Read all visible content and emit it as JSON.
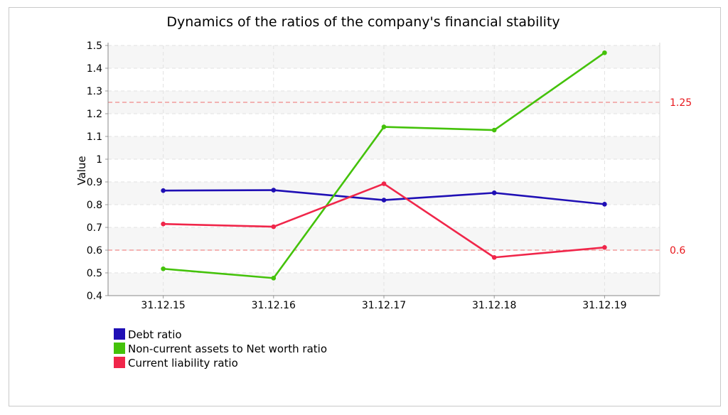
{
  "chart_data": {
    "type": "line",
    "title": "Dynamics of the ratios of the company's financial stability",
    "xlabel": "",
    "ylabel": "Value",
    "categories": [
      "31.12.15",
      "31.12.16",
      "31.12.17",
      "31.12.18",
      "31.12.19"
    ],
    "ylim": [
      0.4,
      1.5
    ],
    "yticks": [
      0.4,
      0.5,
      0.6,
      0.7,
      0.8,
      0.9,
      1,
      1.1,
      1.2,
      1.3,
      1.4,
      1.5
    ],
    "grid": true,
    "legend_position": "bottom-left",
    "series": [
      {
        "name": "Debt ratio",
        "color": "#1f0fb5",
        "values": [
          0.862,
          0.864,
          0.82,
          0.852,
          0.802
        ]
      },
      {
        "name": "Non-current assets to Net worth ratio",
        "color": "#44c20a",
        "values": [
          0.518,
          0.477,
          1.142,
          1.128,
          1.468
        ]
      },
      {
        "name": "Current liability ratio",
        "color": "#f0264a",
        "values": [
          0.715,
          0.703,
          0.892,
          0.568,
          0.612
        ]
      }
    ],
    "reference_lines": [
      {
        "value": 1.25,
        "label": "1.25",
        "color": "#f08a8a"
      },
      {
        "value": 0.6,
        "label": "0.6",
        "color": "#f08a8a"
      }
    ]
  }
}
